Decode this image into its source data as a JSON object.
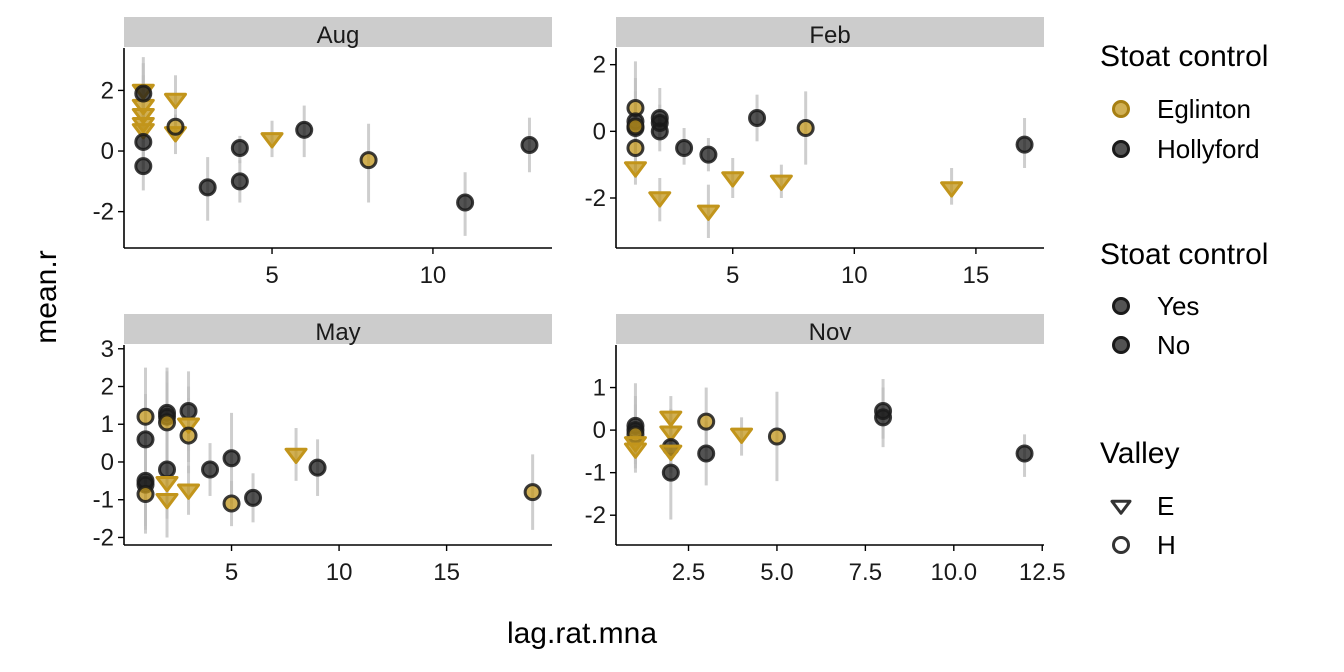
{
  "chart_data": {
    "type": "scatter",
    "xlabel": "lag.rat.mna",
    "ylabel": "mean.r",
    "colors": {
      "Eglinton": "#C2951B",
      "Hollyford": "#1a1a1a",
      "errorbar": "#bdbdbd",
      "strip": "#cccccc"
    },
    "legends": [
      {
        "title": "Stoat control",
        "entries": [
          {
            "label": "Eglinton",
            "shape": "circle",
            "color": "#C2951B"
          },
          {
            "label": "Hollyford",
            "shape": "circle",
            "color": "#1a1a1a"
          }
        ]
      },
      {
        "title": "Stoat control",
        "entries": [
          {
            "label": "Yes",
            "shape": "circle",
            "color": "#1a1a1a"
          },
          {
            "label": "No",
            "shape": "circle",
            "color": "#1a1a1a"
          }
        ]
      },
      {
        "title": "Valley",
        "entries": [
          {
            "label": "E",
            "shape": "triangle",
            "color": "#1a1a1a"
          },
          {
            "label": "H",
            "shape": "circle-open",
            "color": "#1a1a1a"
          }
        ]
      }
    ],
    "panels": [
      {
        "title": "Aug",
        "xlim": [
          0.4,
          13.7
        ],
        "ylim": [
          -3.2,
          3.4
        ],
        "xticks": [
          {
            "v": 5,
            "label": "5"
          },
          {
            "v": 10,
            "label": "10"
          }
        ],
        "yticks": [
          {
            "v": -2,
            "label": "-2"
          },
          {
            "v": 0,
            "label": "0"
          },
          {
            "v": 2,
            "label": "2"
          }
        ],
        "points": [
          {
            "x": 1,
            "y": 2.0,
            "lo": 1.0,
            "hi": 2.9,
            "site": "Eglinton",
            "shape": "triangle"
          },
          {
            "x": 1,
            "y": 1.5,
            "lo": 0.6,
            "hi": 2.5,
            "site": "Eglinton",
            "shape": "triangle"
          },
          {
            "x": 1,
            "y": 1.2,
            "lo": 0.3,
            "hi": 2.2,
            "site": "Eglinton",
            "shape": "triangle"
          },
          {
            "x": 1,
            "y": 0.9,
            "lo": 0.0,
            "hi": 1.9,
            "site": "Eglinton",
            "shape": "triangle"
          },
          {
            "x": 1,
            "y": 0.7,
            "lo": -0.2,
            "hi": 1.6,
            "site": "Eglinton",
            "shape": "triangle"
          },
          {
            "x": 1,
            "y": 1.9,
            "lo": 0.8,
            "hi": 3.1,
            "site": "Hollyford",
            "shape": "circle"
          },
          {
            "x": 1,
            "y": 0.3,
            "lo": -0.6,
            "hi": 1.2,
            "site": "Hollyford",
            "shape": "circle"
          },
          {
            "x": 1,
            "y": -0.5,
            "lo": -1.3,
            "hi": 0.3,
            "site": "Hollyford",
            "shape": "circle"
          },
          {
            "x": 2,
            "y": 1.7,
            "lo": 0.9,
            "hi": 2.5,
            "site": "Eglinton",
            "shape": "triangle"
          },
          {
            "x": 2,
            "y": 0.6,
            "lo": -0.1,
            "hi": 1.2,
            "site": "Eglinton",
            "shape": "triangle"
          },
          {
            "x": 2,
            "y": 0.8,
            "lo": 0.3,
            "hi": 1.2,
            "site": "Eglinton",
            "shape": "circle"
          },
          {
            "x": 3,
            "y": -1.2,
            "lo": -2.3,
            "hi": -0.2,
            "site": "Hollyford",
            "shape": "circle"
          },
          {
            "x": 4,
            "y": 0.1,
            "lo": -0.4,
            "hi": 0.5,
            "site": "Hollyford",
            "shape": "circle"
          },
          {
            "x": 4,
            "y": -1.0,
            "lo": -1.7,
            "hi": -0.3,
            "site": "Hollyford",
            "shape": "circle"
          },
          {
            "x": 5,
            "y": 0.4,
            "lo": -0.2,
            "hi": 1.0,
            "site": "Eglinton",
            "shape": "triangle"
          },
          {
            "x": 6,
            "y": 0.7,
            "lo": -0.2,
            "hi": 1.5,
            "site": "Hollyford",
            "shape": "circle"
          },
          {
            "x": 8,
            "y": -0.3,
            "lo": -1.7,
            "hi": 0.9,
            "site": "Eglinton",
            "shape": "circle"
          },
          {
            "x": 11,
            "y": -1.7,
            "lo": -2.8,
            "hi": -0.7,
            "site": "Hollyford",
            "shape": "circle"
          },
          {
            "x": 13,
            "y": 0.2,
            "lo": -0.7,
            "hi": 1.1,
            "site": "Hollyford",
            "shape": "circle"
          }
        ]
      },
      {
        "title": "Feb",
        "xlim": [
          0.2,
          17.8
        ],
        "ylim": [
          -3.5,
          2.5
        ],
        "xticks": [
          {
            "v": 5,
            "label": "5"
          },
          {
            "v": 10,
            "label": "10"
          },
          {
            "v": 15,
            "label": "15"
          }
        ],
        "yticks": [
          {
            "v": -2,
            "label": "-2"
          },
          {
            "v": 0,
            "label": "0"
          },
          {
            "v": 2,
            "label": "2"
          }
        ],
        "points": [
          {
            "x": 1,
            "y": 0.7,
            "lo": -0.7,
            "hi": 2.1,
            "site": "Eglinton",
            "shape": "circle"
          },
          {
            "x": 1,
            "y": 0.3,
            "lo": -0.6,
            "hi": 1.6,
            "site": "Hollyford",
            "shape": "circle"
          },
          {
            "x": 1,
            "y": 0.1,
            "lo": -0.8,
            "hi": 1.2,
            "site": "Hollyford",
            "shape": "circle"
          },
          {
            "x": 1,
            "y": 0.15,
            "lo": -0.6,
            "hi": 0.9,
            "site": "Eglinton",
            "shape": "circle"
          },
          {
            "x": 1,
            "y": -0.5,
            "lo": -1.4,
            "hi": 0.4,
            "site": "Eglinton",
            "shape": "circle"
          },
          {
            "x": 1,
            "y": -1.1,
            "lo": -1.6,
            "hi": -0.6,
            "site": "Eglinton",
            "shape": "triangle"
          },
          {
            "x": 2,
            "y": 0.4,
            "lo": -0.2,
            "hi": 1.3,
            "site": "Hollyford",
            "shape": "circle"
          },
          {
            "x": 2,
            "y": 0.25,
            "lo": -0.3,
            "hi": 0.8,
            "site": "Hollyford",
            "shape": "circle"
          },
          {
            "x": 2,
            "y": 0.0,
            "lo": -0.6,
            "hi": 0.6,
            "site": "Hollyford",
            "shape": "circle"
          },
          {
            "x": 2,
            "y": -2.0,
            "lo": -2.7,
            "hi": -1.4,
            "site": "Eglinton",
            "shape": "triangle"
          },
          {
            "x": 3,
            "y": -0.5,
            "lo": -1.0,
            "hi": 0.1,
            "site": "Hollyford",
            "shape": "circle"
          },
          {
            "x": 4,
            "y": -0.7,
            "lo": -1.2,
            "hi": -0.2,
            "site": "Hollyford",
            "shape": "circle"
          },
          {
            "x": 4,
            "y": -2.4,
            "lo": -3.2,
            "hi": -1.6,
            "site": "Eglinton",
            "shape": "triangle"
          },
          {
            "x": 5,
            "y": -1.4,
            "lo": -2.0,
            "hi": -0.8,
            "site": "Eglinton",
            "shape": "triangle"
          },
          {
            "x": 6,
            "y": 0.4,
            "lo": -0.3,
            "hi": 1.1,
            "site": "Hollyford",
            "shape": "circle"
          },
          {
            "x": 7,
            "y": -1.5,
            "lo": -2.0,
            "hi": -1.0,
            "site": "Eglinton",
            "shape": "triangle"
          },
          {
            "x": 8,
            "y": 0.1,
            "lo": -1.0,
            "hi": 1.2,
            "site": "Eglinton",
            "shape": "circle"
          },
          {
            "x": 14,
            "y": -1.7,
            "lo": -2.2,
            "hi": -1.1,
            "site": "Eglinton",
            "shape": "triangle"
          },
          {
            "x": 17,
            "y": -0.4,
            "lo": -1.1,
            "hi": 0.4,
            "site": "Hollyford",
            "shape": "circle"
          }
        ]
      },
      {
        "title": "May",
        "xlim": [
          0.0,
          19.9
        ],
        "ylim": [
          -2.2,
          3.1
        ],
        "xticks": [
          {
            "v": 5,
            "label": "5"
          },
          {
            "v": 10,
            "label": "10"
          },
          {
            "v": 15,
            "label": "15"
          }
        ],
        "yticks": [
          {
            "v": -2,
            "label": "-2"
          },
          {
            "v": -1,
            "label": "-1"
          },
          {
            "v": 0,
            "label": "0"
          },
          {
            "v": 1,
            "label": "1"
          },
          {
            "v": 2,
            "label": "2"
          },
          {
            "v": 3,
            "label": "3"
          }
        ],
        "points": [
          {
            "x": 1,
            "y": 1.2,
            "lo": -0.1,
            "hi": 2.5,
            "site": "Eglinton",
            "shape": "circle"
          },
          {
            "x": 1,
            "y": 0.6,
            "lo": -0.6,
            "hi": 1.8,
            "site": "Hollyford",
            "shape": "circle"
          },
          {
            "x": 1,
            "y": -0.5,
            "lo": -1.7,
            "hi": 0.6,
            "site": "Hollyford",
            "shape": "circle"
          },
          {
            "x": 1,
            "y": -0.6,
            "lo": -1.8,
            "hi": 0.6,
            "site": "Hollyford",
            "shape": "circle"
          },
          {
            "x": 1,
            "y": -0.85,
            "lo": -1.9,
            "hi": 0.3,
            "site": "Eglinton",
            "shape": "circle"
          },
          {
            "x": 2,
            "y": 1.3,
            "lo": 0.1,
            "hi": 2.5,
            "site": "Hollyford",
            "shape": "circle"
          },
          {
            "x": 2,
            "y": 1.2,
            "lo": -0.1,
            "hi": 2.4,
            "site": "Hollyford",
            "shape": "circle"
          },
          {
            "x": 2,
            "y": 1.05,
            "lo": 0.0,
            "hi": 2.1,
            "site": "Eglinton",
            "shape": "circle"
          },
          {
            "x": 2,
            "y": -0.2,
            "lo": -1.2,
            "hi": 0.8,
            "site": "Hollyford",
            "shape": "circle"
          },
          {
            "x": 2,
            "y": -0.55,
            "lo": -1.5,
            "hi": 0.5,
            "site": "Eglinton",
            "shape": "triangle"
          },
          {
            "x": 2,
            "y": -1.0,
            "lo": -2.0,
            "hi": 0.0,
            "site": "Eglinton",
            "shape": "triangle"
          },
          {
            "x": 3,
            "y": 1.35,
            "lo": 0.3,
            "hi": 2.4,
            "site": "Hollyford",
            "shape": "circle"
          },
          {
            "x": 3,
            "y": 1.0,
            "lo": 0.0,
            "hi": 2.0,
            "site": "Eglinton",
            "shape": "triangle"
          },
          {
            "x": 3,
            "y": 0.7,
            "lo": -0.3,
            "hi": 1.7,
            "site": "Eglinton",
            "shape": "circle"
          },
          {
            "x": 3,
            "y": -0.75,
            "lo": -1.4,
            "hi": -0.1,
            "site": "Eglinton",
            "shape": "triangle"
          },
          {
            "x": 4,
            "y": -0.2,
            "lo": -0.9,
            "hi": 0.5,
            "site": "Hollyford",
            "shape": "circle"
          },
          {
            "x": 5,
            "y": 0.1,
            "lo": -1.1,
            "hi": 1.3,
            "site": "Hollyford",
            "shape": "circle"
          },
          {
            "x": 5,
            "y": -1.1,
            "lo": -1.7,
            "hi": -0.5,
            "site": "Eglinton",
            "shape": "circle"
          },
          {
            "x": 6,
            "y": -0.95,
            "lo": -1.6,
            "hi": -0.3,
            "site": "Hollyford",
            "shape": "circle"
          },
          {
            "x": 8,
            "y": 0.2,
            "lo": -0.5,
            "hi": 0.9,
            "site": "Eglinton",
            "shape": "triangle"
          },
          {
            "x": 9,
            "y": -0.15,
            "lo": -0.9,
            "hi": 0.6,
            "site": "Hollyford",
            "shape": "circle"
          },
          {
            "x": 19,
            "y": -0.8,
            "lo": -1.8,
            "hi": 0.2,
            "site": "Eglinton",
            "shape": "circle"
          }
        ]
      },
      {
        "title": "Nov",
        "xlim": [
          0.45,
          12.55
        ],
        "ylim": [
          -2.7,
          2.0
        ],
        "xticks": [
          {
            "v": 2.5,
            "label": "2.5"
          },
          {
            "v": 5,
            "label": "5.0"
          },
          {
            "v": 7.5,
            "label": "7.5"
          },
          {
            "v": 10,
            "label": "10.0"
          },
          {
            "v": 12.5,
            "label": "12.5"
          }
        ],
        "yticks": [
          {
            "v": -2,
            "label": "-2"
          },
          {
            "v": -1,
            "label": "-1"
          },
          {
            "v": 0,
            "label": "0"
          },
          {
            "v": 1,
            "label": "1"
          }
        ],
        "points": [
          {
            "x": 1,
            "y": 0.1,
            "lo": -0.6,
            "hi": 1.1,
            "site": "Hollyford",
            "shape": "circle"
          },
          {
            "x": 1,
            "y": 0.0,
            "lo": -0.7,
            "hi": 0.8,
            "site": "Hollyford",
            "shape": "circle"
          },
          {
            "x": 1,
            "y": -0.1,
            "lo": -0.8,
            "hi": 0.6,
            "site": "Eglinton",
            "shape": "circle"
          },
          {
            "x": 1,
            "y": -0.3,
            "lo": -0.9,
            "hi": 0.3,
            "site": "Eglinton",
            "shape": "triangle"
          },
          {
            "x": 1,
            "y": -0.45,
            "lo": -1.0,
            "hi": 0.1,
            "site": "Eglinton",
            "shape": "triangle"
          },
          {
            "x": 2,
            "y": 0.3,
            "lo": -0.2,
            "hi": 0.8,
            "site": "Eglinton",
            "shape": "triangle"
          },
          {
            "x": 2,
            "y": -0.05,
            "lo": -0.5,
            "hi": 0.5,
            "site": "Eglinton",
            "shape": "triangle"
          },
          {
            "x": 2,
            "y": -0.4,
            "lo": -1.0,
            "hi": 0.3,
            "site": "Hollyford",
            "shape": "circle"
          },
          {
            "x": 2,
            "y": -0.5,
            "lo": -1.0,
            "hi": 0.0,
            "site": "Eglinton",
            "shape": "triangle"
          },
          {
            "x": 2,
            "y": -1.0,
            "lo": -2.1,
            "hi": 0.0,
            "site": "Hollyford",
            "shape": "circle"
          },
          {
            "x": 3,
            "y": 0.2,
            "lo": -0.5,
            "hi": 1.0,
            "site": "Eglinton",
            "shape": "circle"
          },
          {
            "x": 3,
            "y": -0.55,
            "lo": -1.3,
            "hi": 0.2,
            "site": "Hollyford",
            "shape": "circle"
          },
          {
            "x": 4,
            "y": -0.1,
            "lo": -0.6,
            "hi": 0.3,
            "site": "Eglinton",
            "shape": "triangle"
          },
          {
            "x": 5,
            "y": -0.15,
            "lo": -1.2,
            "hi": 0.9,
            "site": "Eglinton",
            "shape": "circle"
          },
          {
            "x": 8,
            "y": 0.45,
            "lo": -0.2,
            "hi": 1.2,
            "site": "Hollyford",
            "shape": "circle"
          },
          {
            "x": 8,
            "y": 0.3,
            "lo": -0.4,
            "hi": 1.0,
            "site": "Hollyford",
            "shape": "circle"
          },
          {
            "x": 12,
            "y": -0.55,
            "lo": -1.1,
            "hi": -0.1,
            "site": "Hollyford",
            "shape": "circle"
          }
        ]
      }
    ]
  }
}
